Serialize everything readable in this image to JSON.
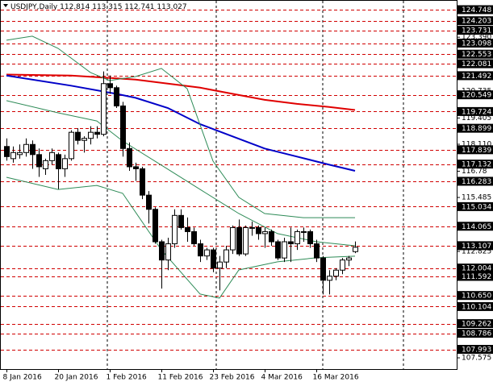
{
  "chart_data": {
    "type": "candlestick",
    "title": "USDJPY,Daily",
    "open": [
      118.0,
      117.4,
      117.6,
      117.7,
      118.1,
      117.6,
      116.9,
      117.3,
      117.6,
      116.9,
      117.4,
      118.7,
      118.3,
      118.4,
      118.7,
      118.6,
      121.1,
      120.9,
      120.0,
      117.9,
      117.0,
      116.9,
      115.6,
      114.9,
      113.3,
      112.4,
      113.2,
      114.6,
      114.0,
      113.8,
      113.2,
      112.6,
      112.9,
      112.0,
      112.3,
      112.9,
      114.0,
      112.7,
      114.0,
      114.0,
      113.7,
      113.8,
      113.3,
      112.5,
      113.3,
      113.2,
      113.8,
      113.8,
      113.2,
      112.5,
      111.4,
      111.6,
      111.9,
      112.4,
      112.814
    ],
    "high": [
      118.4,
      118.0,
      118.1,
      118.4,
      118.3,
      117.9,
      117.4,
      117.9,
      117.7,
      117.6,
      118.8,
      118.9,
      118.5,
      119.0,
      119.0,
      121.7,
      121.5,
      121.0,
      120.2,
      118.2,
      117.2,
      117.0,
      115.8,
      115.0,
      113.4,
      113.5,
      114.9,
      114.9,
      114.5,
      114.0,
      113.4,
      113.0,
      113.0,
      112.6,
      113.1,
      114.1,
      114.4,
      114.1,
      114.3,
      114.1,
      114.0,
      113.9,
      113.4,
      113.5,
      114.0,
      113.9,
      114.0,
      113.9,
      113.4,
      112.6,
      111.9,
      112.0,
      112.5,
      112.6,
      113.315
    ],
    "low": [
      117.3,
      117.2,
      117.4,
      117.5,
      116.9,
      116.5,
      116.6,
      117.1,
      115.9,
      116.5,
      117.3,
      118.1,
      117.7,
      118.1,
      118.4,
      118.5,
      120.6,
      119.9,
      117.5,
      116.8,
      116.3,
      115.4,
      114.2,
      113.2,
      110.99,
      111.9,
      113.0,
      113.9,
      113.3,
      113.1,
      112.3,
      112.4,
      111.8,
      110.9,
      112.0,
      112.7,
      112.6,
      112.6,
      113.6,
      113.4,
      113.0,
      113.1,
      112.4,
      112.3,
      112.3,
      112.9,
      113.3,
      113.0,
      112.3,
      110.7,
      110.7,
      111.4,
      111.7,
      112.1,
      112.741
    ],
    "close": [
      117.5,
      117.7,
      117.7,
      118.1,
      117.6,
      117.0,
      117.3,
      117.7,
      116.9,
      117.4,
      118.7,
      118.3,
      118.4,
      118.7,
      118.6,
      121.1,
      120.9,
      120.0,
      117.9,
      117.0,
      116.9,
      115.6,
      114.9,
      113.3,
      112.4,
      113.2,
      114.6,
      114.0,
      113.8,
      113.2,
      112.6,
      112.9,
      112.0,
      112.3,
      112.9,
      114.0,
      112.7,
      114.0,
      114.0,
      113.7,
      113.8,
      113.3,
      112.5,
      113.3,
      113.2,
      113.8,
      113.8,
      113.2,
      112.5,
      111.4,
      111.6,
      111.9,
      112.4,
      112.5,
      113.027
    ],
    "indicators": [
      {
        "color": "#e00000",
        "x": [
          0,
          10,
          20,
          25,
          30,
          35,
          40,
          45,
          50,
          54
        ],
        "values": [
          121.55,
          121.5,
          121.3,
          121.1,
          120.9,
          120.6,
          120.3,
          120.1,
          119.95,
          119.8
        ]
      },
      {
        "color": "#0000c8",
        "x": [
          0,
          10,
          17,
          20,
          25,
          30,
          35,
          40,
          45,
          50,
          54
        ],
        "values": [
          121.5,
          121.0,
          120.6,
          120.4,
          119.9,
          119.1,
          118.5,
          117.9,
          117.5,
          117.1,
          116.8
        ]
      },
      {
        "color": "#2e8b57",
        "x": [
          0,
          4,
          8,
          13,
          16,
          20,
          24,
          28,
          32,
          36,
          40,
          46,
          54
        ],
        "values": [
          123.24,
          123.44,
          122.84,
          121.65,
          121.25,
          121.45,
          121.85,
          120.85,
          117.28,
          115.49,
          114.69,
          114.49,
          114.49
        ]
      },
      {
        "color": "#2e8b57",
        "x": [
          0,
          8,
          14,
          18,
          24,
          30,
          36,
          42,
          48,
          54
        ],
        "values": [
          120.26,
          119.66,
          119.26,
          118.27,
          117.08,
          115.88,
          114.69,
          113.7,
          113.3,
          113.1
        ]
      },
      {
        "color": "#2e8b57",
        "x": [
          0,
          8,
          14,
          18,
          24,
          30,
          33,
          36,
          42,
          48,
          54
        ],
        "values": [
          116.48,
          115.88,
          116.08,
          115.69,
          112.9,
          110.72,
          110.52,
          111.91,
          112.31,
          112.51,
          112.59
        ]
      }
    ],
    "ylim": [
      107.02,
      125.225
    ],
    "yticks": [
      {
        "value": 123.39,
        "label": "123.390"
      },
      120.735,
      119.405,
      {
        "value": 118.11,
        "label": "118.110"
      },
      116.78,
      115.485,
      112.825,
      107.575
    ],
    "levels": [
      124.748,
      124.203,
      123.731,
      123.098,
      122.553,
      122.081,
      121.492,
      120.549,
      119.724,
      118.899,
      117.839,
      117.132,
      116.283,
      115.034,
      114.065,
      113.107,
      112.004,
      111.592,
      {
        "value": 110.65,
        "label": "110.650"
      },
      110.104,
      109.262,
      108.786,
      107.993
    ],
    "level_color": "#d00000",
    "xticks": [
      {
        "value": 0,
        "label": "8 Jan 2016"
      },
      {
        "value": 8,
        "label": "20 Jan 2016"
      },
      {
        "value": 16,
        "label": "1 Feb 2016"
      },
      {
        "value": 24,
        "label": "11 Feb 2016"
      },
      {
        "value": 32,
        "label": "23 Feb 2016"
      },
      {
        "value": 40,
        "label": "4 Mar 2016"
      },
      {
        "value": 48,
        "label": "16 Mar 2016"
      }
    ]
  }
}
